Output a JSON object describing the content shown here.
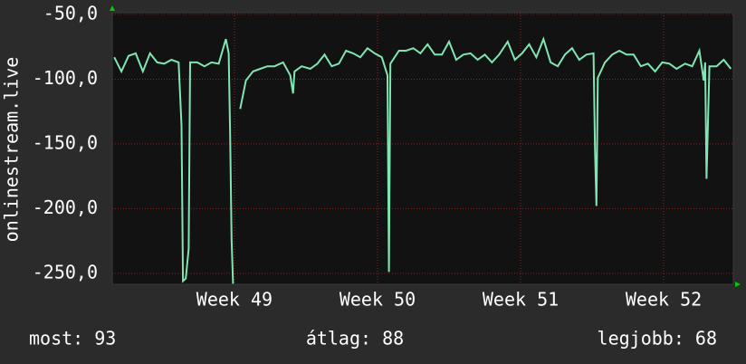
{
  "chart_data": {
    "type": "line",
    "y_label": "onlinestream.live",
    "xlim": [
      48.146,
      52.487
    ],
    "ylim": [
      -258.5,
      -48.6
    ],
    "xticks": [
      {
        "value": 49,
        "label": "Week 49"
      },
      {
        "value": 50,
        "label": "Week 50"
      },
      {
        "value": 51,
        "label": "Week 51"
      },
      {
        "value": 52,
        "label": "Week 52"
      }
    ],
    "yticks": [
      {
        "value": -50,
        "label": "-50,0"
      },
      {
        "value": -100,
        "label": "-100,0"
      },
      {
        "value": -150,
        "label": "-150,0"
      },
      {
        "value": -200,
        "label": "-200,0"
      },
      {
        "value": -250,
        "label": "-250,0"
      }
    ],
    "grid": true,
    "series": [
      {
        "color": "#7fe6b2",
        "x": [
          48.16,
          48.21,
          48.26,
          48.31,
          48.36,
          48.41,
          48.46,
          48.51,
          48.56,
          48.61,
          48.63,
          48.64,
          48.66,
          48.68,
          48.69,
          48.74,
          48.79,
          48.84,
          48.89,
          48.94,
          48.96,
          48.97,
          48.98,
          48.99,
          null,
          49.04,
          49.08,
          49.13,
          49.18,
          49.23,
          49.28,
          49.34,
          49.39,
          49.41,
          49.42,
          49.47,
          49.53,
          49.58,
          49.63,
          49.68,
          49.73,
          49.78,
          49.83,
          49.88,
          49.93,
          49.98,
          50.03,
          50.07,
          50.08,
          50.09,
          50.15,
          50.2,
          50.25,
          50.3,
          50.35,
          50.4,
          50.45,
          50.5,
          50.55,
          50.6,
          50.65,
          50.7,
          50.75,
          50.8,
          50.85,
          50.91,
          50.96,
          51.01,
          51.06,
          51.11,
          51.16,
          51.21,
          51.26,
          51.31,
          51.36,
          51.41,
          51.46,
          51.51,
          51.52,
          51.53,
          51.54,
          51.59,
          51.64,
          51.69,
          51.74,
          51.79,
          51.84,
          51.89,
          51.94,
          51.99,
          52.04,
          52.09,
          52.15,
          52.2,
          52.25,
          52.28,
          52.29,
          52.3,
          52.32,
          52.37,
          52.42,
          52.47
        ],
        "values": [
          -83,
          -94,
          -82,
          -80,
          -94,
          -80,
          -87,
          -88,
          -85,
          -87,
          -136,
          -256,
          -254,
          -231,
          -87,
          -87,
          -90,
          -87,
          -88,
          -69,
          -80,
          -143,
          -224,
          -258,
          null,
          -123,
          -101,
          -94,
          -92,
          -90,
          -90,
          -87,
          -97,
          -111,
          -94,
          -90,
          -92,
          -88,
          -81,
          -90,
          -88,
          -78,
          -80,
          -83,
          -76,
          -80,
          -83,
          -97,
          -249,
          -88,
          -78,
          -78,
          -76,
          -80,
          -73,
          -81,
          -81,
          -71,
          -85,
          -81,
          -80,
          -85,
          -81,
          -87,
          -81,
          -71,
          -85,
          -80,
          -73,
          -83,
          -69,
          -87,
          -90,
          -81,
          -76,
          -85,
          -81,
          -80,
          -154,
          -198,
          -99,
          -87,
          -81,
          -78,
          -81,
          -81,
          -90,
          -88,
          -94,
          -87,
          -88,
          -92,
          -88,
          -90,
          -78,
          -101,
          -87,
          -177,
          -90,
          -90,
          -85,
          -92
        ]
      }
    ],
    "footer": [
      "most: 93",
      "átlag: 88",
      "legjobb: 68"
    ]
  }
}
